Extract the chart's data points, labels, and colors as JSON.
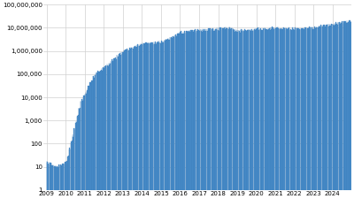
{
  "bar_color": "#5b9bd5",
  "bar_edge_color": "#2e75b6",
  "background_color": "#ffffff",
  "grid_color": "#d0d0d0",
  "ylim_min": 1,
  "ylim_max": 100000000,
  "yticks": [
    1,
    10,
    100,
    1000,
    10000,
    100000,
    1000000,
    10000000,
    100000000
  ],
  "ytick_labels": [
    "1",
    "10",
    "100",
    "1,000",
    "10,000",
    "100,000",
    "1,000,000",
    "10,000,000",
    "100,000,000"
  ],
  "xtick_years": [
    2009,
    2010,
    2011,
    2012,
    2013,
    2014,
    2015,
    2016,
    2017,
    2018,
    2019,
    2020,
    2021,
    2022,
    2023,
    2024
  ],
  "start_year": 2009,
  "start_month": 1,
  "xlim_min": 2008.83,
  "xlim_max": 2025.0
}
